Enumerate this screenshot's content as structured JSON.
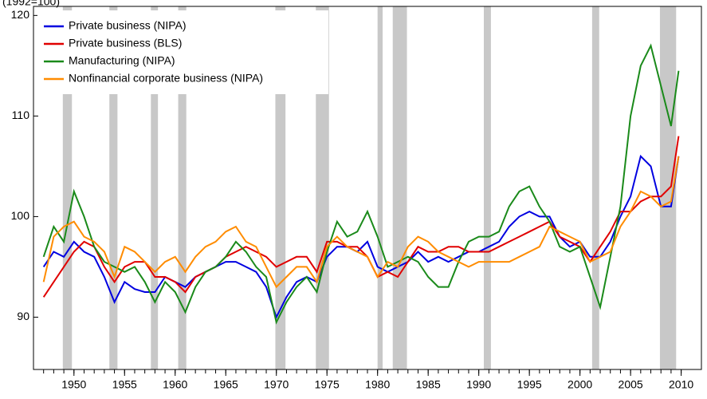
{
  "chart_data": {
    "type": "line",
    "y_unit_label": "(1992=100)",
    "xlim": [
      1946,
      2012
    ],
    "ylim": [
      84.8,
      120.9
    ],
    "xticks": [
      1950,
      1955,
      1960,
      1965,
      1970,
      1975,
      1980,
      1985,
      1990,
      1995,
      2000,
      2005,
      2010
    ],
    "xminorticks": [
      1947,
      1948,
      1949,
      1950,
      1951,
      1952,
      1953,
      1954,
      1955,
      1956,
      1957,
      1958,
      1959,
      1960,
      1961,
      1962,
      1963,
      1964,
      1965,
      1966,
      1967,
      1968,
      1969,
      1970,
      1971,
      1972,
      1973,
      1974,
      1975,
      1976,
      1977,
      1978,
      1979,
      1980,
      1981,
      1982,
      1983,
      1984,
      1985,
      1986,
      1987,
      1988,
      1989,
      1990,
      1991,
      1992,
      1993,
      1994,
      1995,
      1996,
      1997,
      1998,
      1999,
      2000,
      2001,
      2002,
      2003,
      2004,
      2005,
      2006,
      2007,
      2008,
      2009,
      2010
    ],
    "yticks": [
      90,
      100,
      110,
      120
    ],
    "legend": "upper left",
    "recessions": [
      [
        1948.9,
        1949.8
      ],
      [
        1953.5,
        1954.3
      ],
      [
        1957.6,
        1958.3
      ],
      [
        1960.3,
        1961.1
      ],
      [
        1969.9,
        1970.9
      ],
      [
        1973.9,
        1975.2
      ],
      [
        1980.0,
        1980.5
      ],
      [
        1981.5,
        1982.9
      ],
      [
        1990.5,
        1991.2
      ],
      [
        2001.2,
        2001.9
      ],
      [
        2007.9,
        2009.5
      ]
    ],
    "recession_color": "#c8c8c8",
    "x": [
      1947,
      1948,
      1949,
      1950,
      1951,
      1952,
      1953,
      1954,
      1955,
      1956,
      1957,
      1958,
      1959,
      1960,
      1961,
      1962,
      1963,
      1964,
      1965,
      1966,
      1967,
      1968,
      1969,
      1970,
      1971,
      1972,
      1973,
      1974,
      1975,
      1976,
      1977,
      1978,
      1979,
      1980,
      1981,
      1982,
      1983,
      1984,
      1985,
      1986,
      1987,
      1988,
      1989,
      1990,
      1991,
      1992,
      1993,
      1994,
      1995,
      1996,
      1997,
      1998,
      1999,
      2000,
      2001,
      2002,
      2003,
      2004,
      2005,
      2006,
      2007,
      2008,
      2009,
      2009.75
    ],
    "series": [
      {
        "name": "Private business (NIPA)",
        "color": "#0000e0",
        "values": [
          95,
          96.5,
          96,
          97.5,
          96.5,
          96,
          94,
          91.5,
          93.5,
          92.8,
          92.5,
          92.5,
          94,
          93.5,
          93,
          94,
          94.5,
          95,
          95.5,
          95.5,
          95,
          94.5,
          93,
          90,
          92,
          93.5,
          94,
          93.5,
          96,
          97,
          97,
          96.5,
          97.5,
          95,
          94.5,
          95,
          95.5,
          96.5,
          95.5,
          96,
          95.5,
          96,
          96.5,
          96.5,
          97,
          97.5,
          99,
          100,
          100.5,
          100,
          100,
          98,
          97,
          97.5,
          96,
          96,
          97.5,
          100,
          102,
          106,
          105,
          101,
          101,
          106
        ]
      },
      {
        "name": "Private business (BLS)",
        "color": "#e00000",
        "values": [
          92,
          93.5,
          95,
          96.5,
          97.5,
          97,
          95,
          93.5,
          95,
          95.5,
          95.5,
          94,
          94,
          93.5,
          92.5,
          94,
          94.5,
          95,
          96,
          96.5,
          97,
          96.5,
          96,
          95,
          95.5,
          96,
          96,
          94.5,
          97.5,
          97.5,
          97,
          97,
          96,
          94,
          94.5,
          94,
          95.5,
          97,
          96.5,
          96.5,
          97,
          97,
          96.5,
          96.5,
          96.5,
          97,
          97.5,
          98,
          98.5,
          99,
          99.5,
          98,
          97.5,
          97,
          95.5,
          97,
          98.5,
          100.5,
          100.5,
          101.5,
          102,
          102,
          103,
          108
        ]
      },
      {
        "name": "Manufacturing (NIPA)",
        "color": "#1a8a1a",
        "values": [
          96,
          99,
          97.5,
          102.5,
          100,
          97,
          95.5,
          95,
          94.5,
          95,
          93.5,
          91.5,
          93.5,
          92.5,
          90.5,
          93,
          94.5,
          95,
          96,
          97.5,
          96.5,
          95,
          94,
          89.5,
          91.5,
          93,
          94,
          92.5,
          96.5,
          99.5,
          98,
          98.5,
          100.5,
          98,
          95,
          95.5,
          96,
          95.5,
          94,
          93,
          93,
          95.5,
          97.5,
          98,
          98,
          98.5,
          101,
          102.5,
          103,
          101,
          99.5,
          97,
          96.5,
          97,
          94,
          91,
          96,
          101,
          110,
          115,
          117,
          113,
          109,
          114.5
        ]
      },
      {
        "name": "Nonfinancial corporate business (NIPA)",
        "color": "#ff8c00",
        "values": [
          93.5,
          98,
          99,
          99.5,
          98,
          97.5,
          96.5,
          94,
          97,
          96.5,
          95.5,
          94.5,
          95.5,
          96,
          94.5,
          96,
          97,
          97.5,
          98.5,
          99,
          97.5,
          97,
          95,
          93,
          94,
          95,
          95,
          93.5,
          97,
          98,
          97,
          96.5,
          96,
          94,
          95.5,
          95,
          97,
          98,
          97.5,
          96.5,
          96,
          95.5,
          95,
          95.5,
          95.5,
          95.5,
          95.5,
          96,
          96.5,
          97,
          99,
          98.5,
          98,
          97.5,
          95.5,
          96,
          96.5,
          99,
          100.5,
          102.5,
          102,
          101,
          101.5,
          106
        ]
      }
    ]
  }
}
